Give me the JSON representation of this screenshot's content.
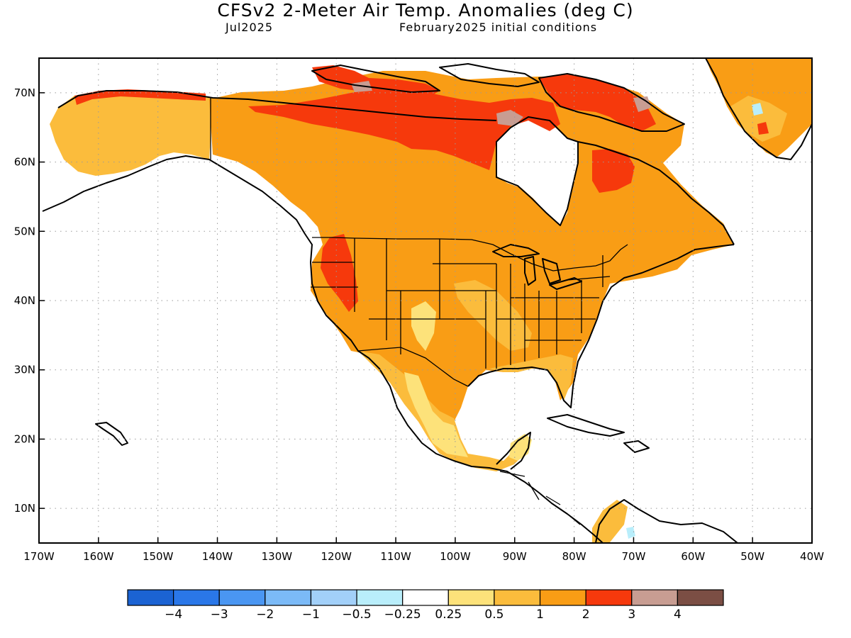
{
  "title": "CFSv2 2-Meter Air Temp. Anomalies (deg C)",
  "valid_month": "Jul2025",
  "initial_conditions": "February2025 initial conditions",
  "map": {
    "lon_range": [
      -170,
      -40
    ],
    "lat_range": [
      5,
      75
    ],
    "lat_ticks": [
      "70N",
      "60N",
      "50N",
      "40N",
      "30N",
      "20N",
      "10N"
    ],
    "lat_values": [
      70,
      60,
      50,
      40,
      30,
      20,
      10
    ],
    "lon_ticks": [
      "170W",
      "160W",
      "150W",
      "140W",
      "130W",
      "120W",
      "110W",
      "100W",
      "90W",
      "80W",
      "70W",
      "60W",
      "50W",
      "40W"
    ],
    "lon_values": [
      -170,
      -160,
      -150,
      -140,
      -130,
      -120,
      -110,
      -100,
      -90,
      -80,
      -70,
      -60,
      -50,
      -40
    ],
    "grid": "dotted"
  },
  "colorbar": {
    "labels": [
      "−4",
      "−3",
      "−2",
      "−1",
      "−0.5",
      "−0.25",
      "0.25",
      "0.5",
      "1",
      "2",
      "3",
      "4"
    ],
    "colors": [
      "#1b63d3",
      "#2a77e8",
      "#4a96f2",
      "#7bbaf7",
      "#a2d0f9",
      "#b9eefb",
      "#ffffff",
      "#fde27a",
      "#fbbc3c",
      "#f99d15",
      "#f6390c",
      "#c89d92",
      "#7b4e44"
    ]
  }
}
